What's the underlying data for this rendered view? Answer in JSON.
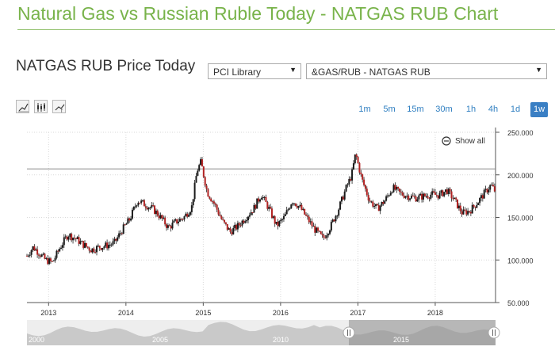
{
  "page_title": "Natural Gas vs Russian Ruble Today - NATGAS RUB Chart",
  "section_title": "NATGAS RUB Price Today",
  "selects": {
    "library": "PCI Library",
    "symbol": "&GAS/RUB - NATGAS RUB"
  },
  "toolbar_icons": [
    "line-chart-icon",
    "candlestick-icon",
    "indicator-icon"
  ],
  "timeframes": [
    "1m",
    "5m",
    "15m",
    "30m",
    "1h",
    "4h",
    "1d",
    "1w"
  ],
  "active_timeframe": "1w",
  "show_all_label": "Show all",
  "colors": {
    "title": "#78b34a",
    "accent": "#3a7fc4",
    "candle_up": "#1a1a1a",
    "candle_down": "#b22222"
  },
  "chart_data": {
    "type": "candlestick",
    "title": "",
    "xlabel": "",
    "ylabel": "",
    "y_ticks": [
      "50.000",
      "100.000",
      "150.000",
      "200.000",
      "250.000"
    ],
    "ylim": [
      50,
      250
    ],
    "x_ticks": [
      "2013",
      "2014",
      "2015",
      "2016",
      "2017",
      "2018"
    ],
    "xlim": [
      2012.72,
      2018.78
    ],
    "current_price_line": 207,
    "grid": true,
    "series": [
      {
        "x": [
          2012.72,
          2012.8,
          2012.88,
          2012.96,
          2013.05,
          2013.15,
          2013.25,
          2013.35,
          2013.45,
          2013.55,
          2013.65,
          2013.75,
          2013.85,
          2013.95,
          2014.05,
          2014.15,
          2014.25,
          2014.35,
          2014.45,
          2014.55,
          2014.65,
          2014.75,
          2014.85,
          2014.92,
          2014.97,
          2015.05,
          2015.15,
          2015.25,
          2015.35,
          2015.45,
          2015.55,
          2015.65,
          2015.75,
          2015.85,
          2015.95,
          2016.05,
          2016.15,
          2016.25,
          2016.35,
          2016.45,
          2016.55,
          2016.65,
          2016.75,
          2016.85,
          2016.92,
          2016.97,
          2017.05,
          2017.15,
          2017.25,
          2017.35,
          2017.45,
          2017.55,
          2017.65,
          2017.75,
          2017.85,
          2017.95,
          2018.05,
          2018.15,
          2018.25,
          2018.35,
          2018.45,
          2018.55,
          2018.65,
          2018.72,
          2018.78
        ],
        "y": [
          105,
          115,
          108,
          100,
          97,
          115,
          130,
          125,
          118,
          112,
          115,
          117,
          120,
          135,
          148,
          170,
          165,
          160,
          150,
          138,
          145,
          150,
          162,
          205,
          215,
          180,
          165,
          145,
          133,
          140,
          150,
          160,
          177,
          160,
          140,
          150,
          170,
          162,
          148,
          135,
          125,
          140,
          160,
          185,
          200,
          225,
          195,
          170,
          160,
          170,
          185,
          178,
          175,
          173,
          175,
          177,
          176,
          182,
          170,
          155,
          158,
          168,
          180,
          188,
          180
        ]
      }
    ]
  },
  "navigator_labels": [
    "2000",
    "2005",
    "2010",
    "2015"
  ]
}
